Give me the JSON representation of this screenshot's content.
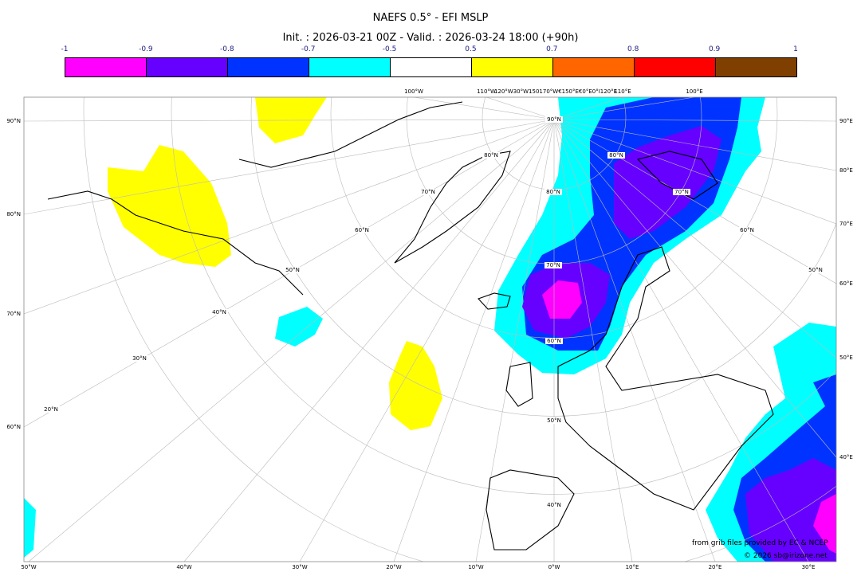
{
  "title": "NAEFS 0.5° - EFI MSLP",
  "subtitle": "Init. : 2026-03-21 00Z - Valid. : 2026-03-24 18:00 (+90h)",
  "colorbar": {
    "ticks": [
      "-1",
      "-0.9",
      "-0.8",
      "-0.7",
      "-0.5",
      "0.5",
      "0.7",
      "0.8",
      "0.9",
      "1"
    ],
    "colors": [
      "#ff00ff",
      "#6600ff",
      "#0033ff",
      "#00ffff",
      "#ffffff",
      "#ffff00",
      "#ff6600",
      "#ff0000",
      "#7f3f00"
    ]
  },
  "axes": {
    "left": [
      "90°N",
      "80°N",
      "70°N",
      "60°N"
    ],
    "right": [
      "90°E",
      "80°E",
      "70°E",
      "60°E",
      "50°E",
      "40°E"
    ],
    "bottom": [
      "50°W",
      "40°W",
      "30°W",
      "20°W",
      "10°W",
      "0°W",
      "10°E",
      "20°E",
      "30°E"
    ],
    "top": [
      "100°W",
      "110°W",
      "120°W30°W150170°W€150°E€0°E0°I120°E",
      "110°E",
      "100°E"
    ]
  },
  "grid_labels": [
    "90°N",
    "80°N",
    "70°N",
    "60°N",
    "50°N",
    "40°N",
    "30°N",
    "20°N",
    "80°N",
    "70°N",
    "60°N",
    "50°N",
    "80°N",
    "70°N",
    "60°N",
    "50°N",
    "40°N"
  ],
  "credits": {
    "source": "from grib files provided by EC & NCEP",
    "copyright": "© 2026 sb@irizone.net"
  }
}
